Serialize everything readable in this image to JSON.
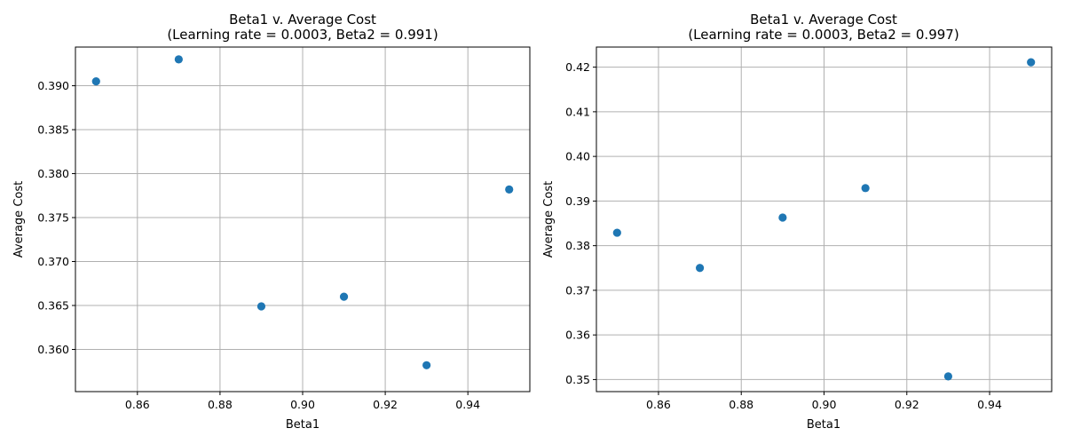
{
  "chart_data": [
    {
      "type": "scatter",
      "title": "Beta1 v. Average Cost",
      "subtitle": "(Learning rate = 0.0003, Beta2 = 0.991)",
      "xlabel": "Beta1",
      "ylabel": "Average Cost",
      "xlim": [
        0.845,
        0.955
      ],
      "ylim": [
        0.3552,
        0.3944
      ],
      "xticks": [
        0.86,
        0.88,
        0.9,
        0.92,
        0.94
      ],
      "xtick_labels": [
        "0.86",
        "0.88",
        "0.90",
        "0.92",
        "0.94"
      ],
      "yticks": [
        0.36,
        0.365,
        0.37,
        0.375,
        0.38,
        0.385,
        0.39
      ],
      "ytick_labels": [
        "0.360",
        "0.365",
        "0.370",
        "0.375",
        "0.380",
        "0.385",
        "0.390"
      ],
      "grid": true,
      "color": "#1f77b4",
      "x": [
        0.85,
        0.87,
        0.89,
        0.91,
        0.93,
        0.95
      ],
      "y": [
        0.3905,
        0.393,
        0.3649,
        0.366,
        0.3582,
        0.3782
      ]
    },
    {
      "type": "scatter",
      "title": "Beta1 v. Average Cost",
      "subtitle": "(Learning rate = 0.0003, Beta2 = 0.997)",
      "xlabel": "Beta1",
      "ylabel": "Average Cost",
      "xlim": [
        0.845,
        0.955
      ],
      "ylim": [
        0.3473,
        0.4245
      ],
      "xticks": [
        0.86,
        0.88,
        0.9,
        0.92,
        0.94
      ],
      "xtick_labels": [
        "0.86",
        "0.88",
        "0.90",
        "0.92",
        "0.94"
      ],
      "yticks": [
        0.35,
        0.36,
        0.37,
        0.38,
        0.39,
        0.4,
        0.41,
        0.42
      ],
      "ytick_labels": [
        "0.35",
        "0.36",
        "0.37",
        "0.38",
        "0.39",
        "0.40",
        "0.41",
        "0.42"
      ],
      "grid": true,
      "color": "#1f77b4",
      "x": [
        0.85,
        0.87,
        0.89,
        0.91,
        0.93,
        0.95
      ],
      "y": [
        0.3829,
        0.375,
        0.3863,
        0.3929,
        0.3507,
        0.4211
      ]
    }
  ]
}
